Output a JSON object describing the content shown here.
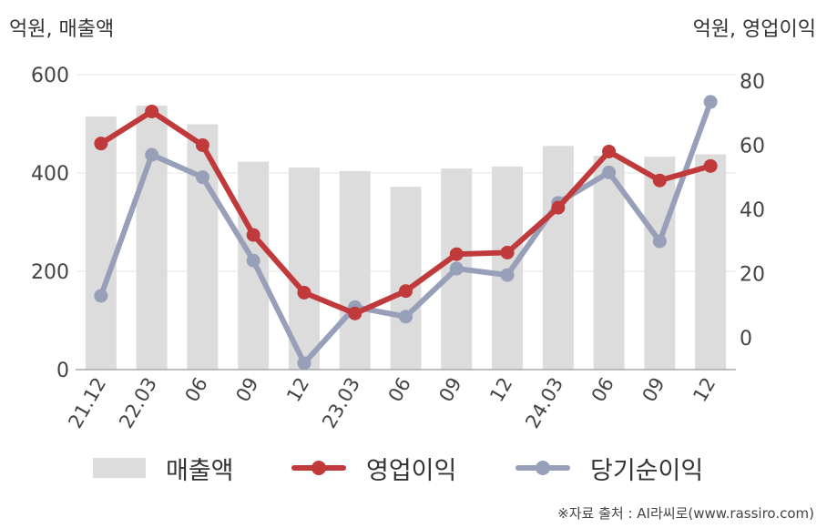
{
  "unit_left": "억원, 매출액",
  "unit_right": "억원, 영업이익",
  "source": "※자료 출처 : AI라씨로(www.rassiro.com)",
  "colors": {
    "bar": "#dcdcdc",
    "operating": "#c0393b",
    "net": "#97a0b8",
    "grid": "#e6e6e6",
    "axis": "#aaaaaa"
  },
  "chart_data": {
    "type": "bar+line",
    "categories": [
      "21.12",
      "22.03",
      "06",
      "09",
      "12",
      "23.03",
      "06",
      "09",
      "12",
      "24.03",
      "06",
      "09",
      "12"
    ],
    "left_axis": {
      "ylim": [
        0,
        600
      ],
      "ticks": [
        0,
        200,
        400,
        600
      ]
    },
    "right_axis": {
      "ylim": [
        -10,
        80
      ],
      "ticks": [
        0,
        20,
        40,
        60,
        80
      ]
    },
    "series": [
      {
        "name": "매출액",
        "type": "bar",
        "axis": "left",
        "values": [
          515,
          537,
          499,
          423,
          411,
          404,
          372,
          409,
          413,
          455,
          435,
          433,
          438
        ]
      },
      {
        "name": "영업이익",
        "type": "line",
        "axis": "right",
        "values": [
          60.5,
          70.5,
          60.0,
          32.0,
          14.0,
          7.5,
          14.5,
          26.0,
          26.5,
          40.5,
          58.0,
          49.0,
          53.5
        ]
      },
      {
        "name": "당기순이익",
        "type": "line",
        "axis": "right",
        "values": [
          13.0,
          57.0,
          50.0,
          24.0,
          -8.0,
          9.5,
          6.5,
          21.5,
          19.5,
          42.0,
          51.5,
          30.0,
          73.5
        ]
      }
    ],
    "grid": true,
    "legend": "bottom"
  }
}
